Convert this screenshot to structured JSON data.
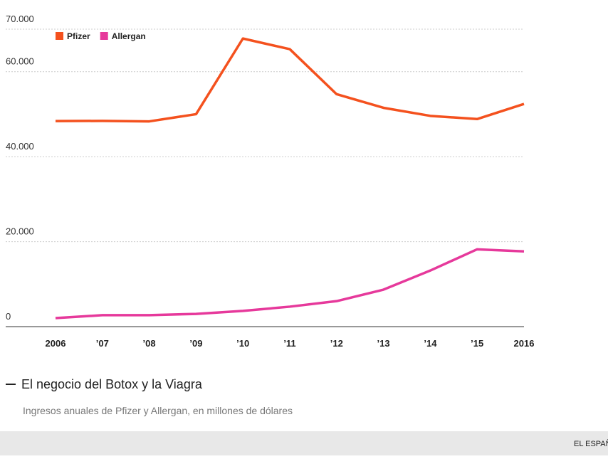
{
  "chart_data": {
    "type": "line",
    "title": "El negocio del Botox y la Viagra",
    "subtitle": "Ingresos anuales de Pfizer y Allergan, en millones de dólares",
    "footer": "EL ESPAÑ",
    "categories": [
      "2006",
      "’07",
      "’08",
      "’09",
      "’10",
      "’11",
      "’12",
      "’13",
      "’14",
      "’15",
      "2016"
    ],
    "series": [
      {
        "name": "Pfizer",
        "color": "#f4511e",
        "values": [
          48370,
          48420,
          48300,
          50000,
          67800,
          65300,
          54700,
          51500,
          49600,
          48850,
          52400
        ]
      },
      {
        "name": "Allergan",
        "color": "#e6399b",
        "values": [
          2000,
          2700,
          2700,
          3000,
          3700,
          4700,
          6000,
          8700,
          13200,
          18200,
          17700
        ]
      }
    ],
    "ylim": [
      0,
      70000
    ],
    "yticks": [
      0,
      {
        "value": 20000,
        "label": "20.000"
      },
      {
        "value": 40000,
        "label": "40.000"
      },
      {
        "value": 60000,
        "label": "60.000"
      },
      {
        "value": 70000,
        "label": "70.000"
      }
    ],
    "grid": true,
    "legend": "top-left"
  }
}
